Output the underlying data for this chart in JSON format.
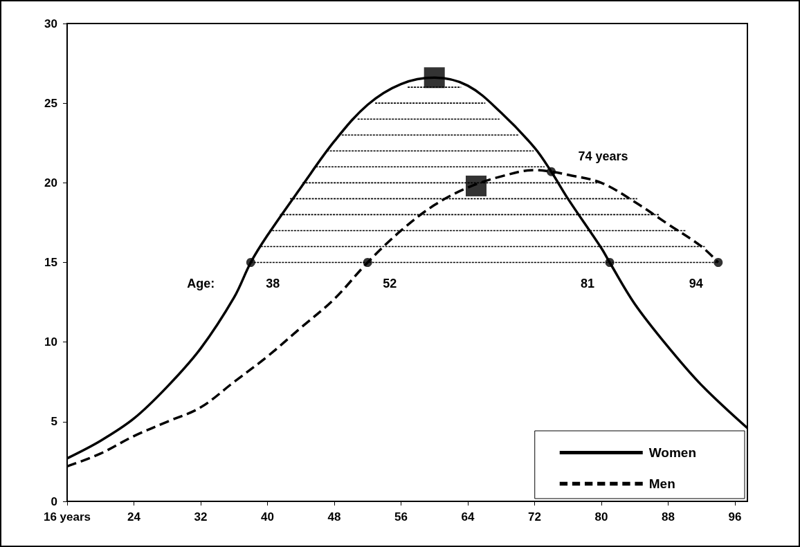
{
  "chart_data": {
    "type": "line",
    "xlim": [
      16,
      97.5
    ],
    "ylim": [
      0,
      30
    ],
    "xticks": [
      {
        "value": 16,
        "label": "16 years"
      },
      24,
      32,
      40,
      48,
      56,
      64,
      72,
      80,
      88,
      96
    ],
    "yticks": [
      0,
      5,
      10,
      15,
      20,
      25,
      30
    ],
    "grid": false,
    "legend": "bottom right",
    "series": [
      {
        "name": "Women",
        "color": "#000000",
        "line_style": "solid",
        "marker": "none",
        "x": [
          16,
          20,
          24,
          28,
          32,
          36,
          38,
          40,
          44,
          48,
          52,
          56,
          60,
          64,
          68,
          72,
          74,
          76,
          80,
          81,
          84,
          88,
          92,
          97.5
        ],
        "values": [
          2.7,
          3.8,
          5.2,
          7.2,
          9.6,
          12.8,
          15,
          16.7,
          19.7,
          22.6,
          24.9,
          26.2,
          26.6,
          26.1,
          24.4,
          22.2,
          20.7,
          19.0,
          15.9,
          15,
          12.4,
          9.7,
          7.3,
          4.6
        ]
      },
      {
        "name": "Men",
        "color": "#000000",
        "line_style": "dashed",
        "marker": "none",
        "x": [
          16,
          20,
          24,
          28,
          32,
          36,
          40,
          44,
          48,
          52,
          56,
          60,
          64,
          68,
          72,
          74,
          76,
          80,
          84,
          88,
          92,
          94
        ],
        "values": [
          2.2,
          3.0,
          4.1,
          5.0,
          5.9,
          7.5,
          9.1,
          10.9,
          12.7,
          15,
          17.0,
          18.6,
          19.7,
          20.4,
          20.8,
          20.7,
          20.5,
          20.0,
          18.8,
          17.4,
          16.0,
          15
        ]
      },
      {
        "type": "line",
        "color": "#000000",
        "line_style": "dotted",
        "marker": "none",
        "x": [
          38,
          94
        ],
        "values": [
          15,
          15
        ]
      },
      {
        "type": "line",
        "color": "#000000",
        "line_style": "dotted",
        "marker": "none",
        "x": [
          39.2,
          92.4
        ],
        "values": [
          16,
          16
        ]
      },
      {
        "type": "line",
        "color": "#000000",
        "line_style": "dotted",
        "marker": "none",
        "x": [
          40.2,
          90.1
        ],
        "values": [
          17,
          17
        ]
      },
      {
        "type": "line",
        "color": "#000000",
        "line_style": "dotted",
        "marker": "none",
        "x": [
          41.5,
          87.0
        ],
        "values": [
          18,
          18
        ]
      },
      {
        "type": "line",
        "color": "#000000",
        "line_style": "dotted",
        "marker": "none",
        "x": [
          42.7,
          84.3
        ],
        "values": [
          19,
          19
        ]
      },
      {
        "type": "line",
        "color": "#000000",
        "line_style": "dotted",
        "marker": "none",
        "x": [
          44.2,
          80.0
        ],
        "values": [
          20,
          20
        ]
      },
      {
        "type": "line",
        "color": "#000000",
        "line_style": "dotted",
        "marker": "none",
        "x": [
          45.8,
          73.2
        ],
        "values": [
          21,
          21
        ]
      },
      {
        "type": "line",
        "color": "#000000",
        "line_style": "dotted",
        "marker": "none",
        "x": [
          47.1,
          71.9
        ],
        "values": [
          22,
          22
        ]
      },
      {
        "type": "line",
        "color": "#000000",
        "line_style": "dotted",
        "marker": "none",
        "x": [
          48.9,
          70.1
        ],
        "values": [
          23,
          23
        ]
      },
      {
        "type": "line",
        "color": "#000000",
        "line_style": "dotted",
        "marker": "none",
        "x": [
          50.8,
          67.8
        ],
        "values": [
          24,
          24
        ]
      },
      {
        "type": "line",
        "color": "#000000",
        "line_style": "dotted",
        "marker": "none",
        "x": [
          52.9,
          66.1
        ],
        "values": [
          25,
          25
        ]
      },
      {
        "type": "line",
        "color": "#000000",
        "line_style": "dotted",
        "marker": "none",
        "x": [
          56.8,
          63.2
        ],
        "values": [
          26,
          26
        ]
      },
      {
        "type": "scatter",
        "color": "#000000",
        "marker": "square",
        "x": [
          60,
          65
        ],
        "values": [
          26.6,
          19.8
        ]
      },
      {
        "type": "scatter",
        "color": "#000000",
        "marker": "circle",
        "x": [
          38,
          52,
          81,
          94,
          74
        ],
        "values": [
          15,
          15,
          15,
          15,
          20.7
        ]
      }
    ],
    "annotations": [
      "Age:",
      {
        "text": "38",
        "x": 38,
        "y": 15
      },
      {
        "text": "52",
        "x": 52,
        "y": 15
      },
      {
        "text": "81",
        "x": 81,
        "y": 15
      },
      {
        "text": "94",
        "x": 94,
        "y": 15
      },
      {
        "text": "74 years",
        "x": 74,
        "y": 20.7
      }
    ]
  }
}
